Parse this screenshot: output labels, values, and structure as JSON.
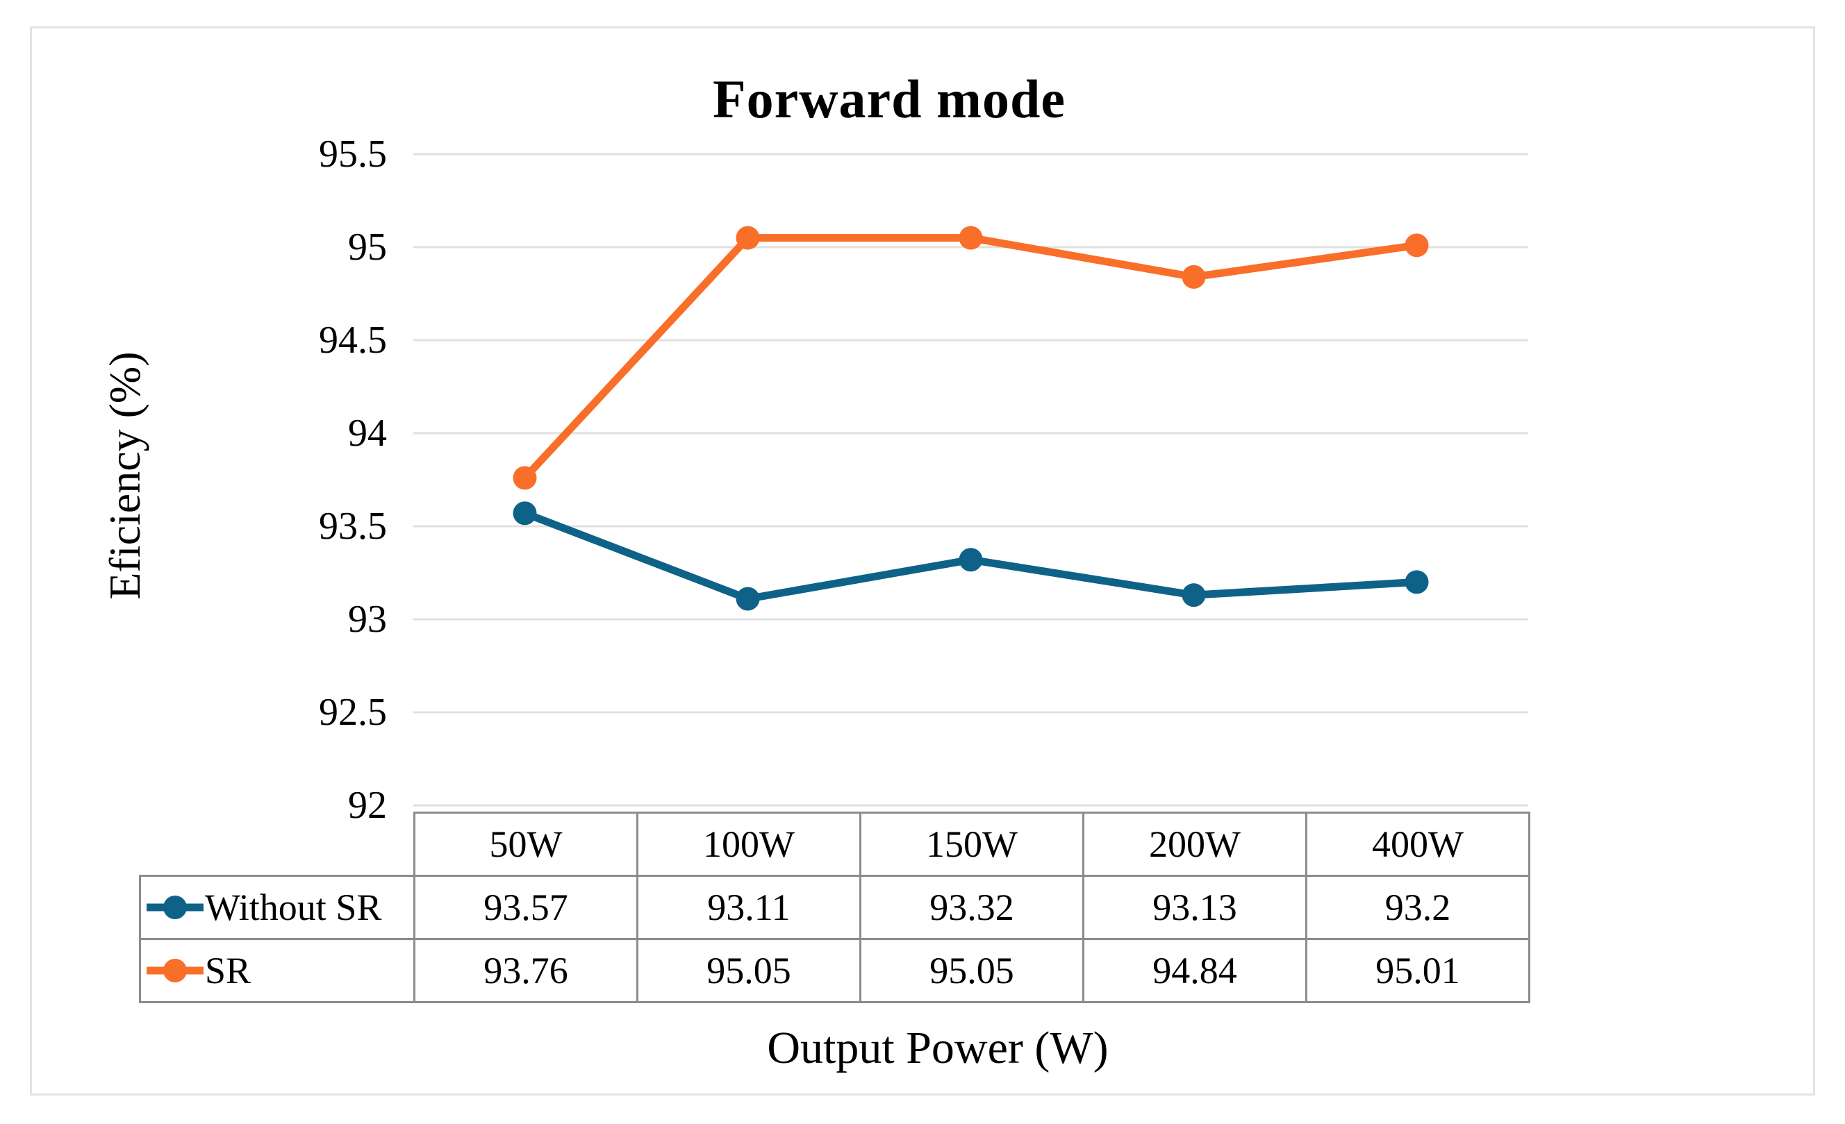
{
  "chart_data": {
    "type": "line",
    "title": "Forward mode",
    "xlabel": "Output Power (W)",
    "ylabel": "Eficiency (%)",
    "categories": [
      "50W",
      "100W",
      "150W",
      "200W",
      "400W"
    ],
    "series": [
      {
        "name": "Without SR",
        "color": "#0e6288",
        "values": [
          93.57,
          93.11,
          93.32,
          93.13,
          93.2
        ]
      },
      {
        "name": "SR",
        "color": "#f96e28",
        "values": [
          93.76,
          95.05,
          95.05,
          94.84,
          95.01
        ]
      }
    ],
    "ylim": [
      92,
      95.5
    ],
    "ytick_step": 0.5,
    "yticks": [
      "95.5",
      "95",
      "94.5",
      "94",
      "93.5",
      "93",
      "92.5",
      "92"
    ],
    "grid": "horizontal-only",
    "gridline_color": "#e0e0e0",
    "legend_position": "data-table-left-column",
    "data_table_shown": true
  }
}
